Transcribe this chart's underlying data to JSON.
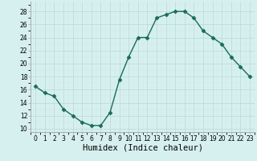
{
  "x": [
    0,
    1,
    2,
    3,
    4,
    5,
    6,
    7,
    8,
    9,
    10,
    11,
    12,
    13,
    14,
    15,
    16,
    17,
    18,
    19,
    20,
    21,
    22,
    23
  ],
  "y": [
    16.5,
    15.5,
    15,
    13,
    12,
    11,
    10.5,
    10.5,
    12.5,
    17.5,
    21,
    24,
    24,
    27,
    27.5,
    28,
    28,
    27,
    25,
    24,
    23,
    21,
    19.5,
    18
  ],
  "line_color": "#1a6b5a",
  "marker": "D",
  "marker_size": 2.5,
  "bg_color": "#d6f0ef",
  "grid_color_major": "#b8d8d8",
  "grid_color_minor": "#c8e8e8",
  "xlabel": "Humidex (Indice chaleur)",
  "xlim": [
    -0.5,
    23.5
  ],
  "ylim": [
    9.5,
    29.5
  ],
  "yticks": [
    10,
    12,
    14,
    16,
    18,
    20,
    22,
    24,
    26,
    28
  ],
  "xticks": [
    0,
    1,
    2,
    3,
    4,
    5,
    6,
    7,
    8,
    9,
    10,
    11,
    12,
    13,
    14,
    15,
    16,
    17,
    18,
    19,
    20,
    21,
    22,
    23
  ],
  "tick_fontsize": 5.5,
  "xlabel_fontsize": 7.5,
  "spine_color": "#aaaaaa",
  "linewidth": 1.0
}
